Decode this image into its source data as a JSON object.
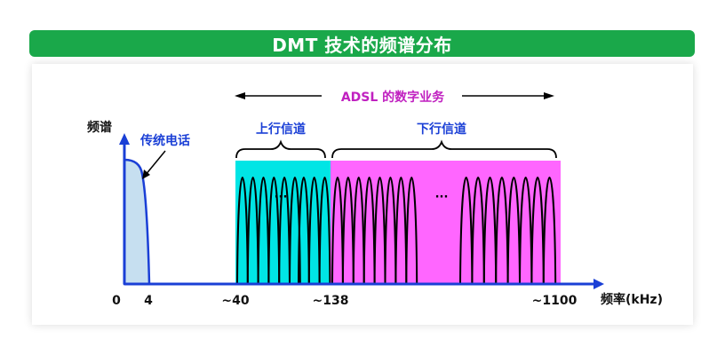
{
  "title": "DMT 技术的频谱分布",
  "labels": {
    "adsl": "ADSL 的数字业务",
    "y_axis": "频谱",
    "x_axis": "频率(kHz)",
    "phone": "传统电话",
    "upstream": "上行信道",
    "downstream": "下行信道",
    "ellipsis_up": "···",
    "ellipsis_down": "···"
  },
  "ticks": [
    "0",
    "4",
    "~40",
    "~138",
    "~1100"
  ],
  "colors": {
    "title_bg": "#1aa84a",
    "upstream_fill": "#00e5e5",
    "downstream_fill": "#ff66ff",
    "phone_fill": "#c6dff0",
    "axis": "#1a3fd6",
    "label_blue": "#1a3fd6",
    "adsl_purple": "#c020c0"
  },
  "carriers": {
    "upstream_group1": 6,
    "upstream_group2": 3,
    "downstream_group1": 8,
    "downstream_group2": 8
  }
}
